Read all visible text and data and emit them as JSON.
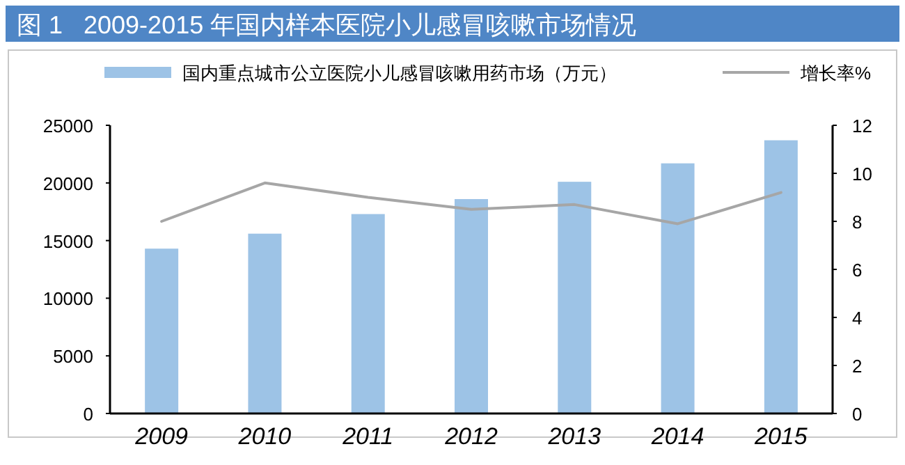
{
  "chart_data": {
    "type": "bar",
    "title": "图 1   2009-2015 年国内样本医院小儿感冒咳嗽市场情况",
    "categories": [
      "2009",
      "2010",
      "2011",
      "2012",
      "2013",
      "2014",
      "2015"
    ],
    "series": [
      {
        "name": "国内重点城市公立医院小儿感冒咳嗽用药市场（万元）",
        "color": "#9dc3e6",
        "values": [
          14300,
          15600,
          17300,
          18600,
          20100,
          21700,
          23700
        ]
      },
      {
        "name": "增长率%",
        "type": "line",
        "axis": "y2",
        "color": "#a6a6a6",
        "values": [
          8.0,
          9.6,
          9.0,
          8.5,
          8.7,
          7.9,
          9.2
        ]
      }
    ],
    "ylim": [
      0,
      25000
    ],
    "yticks": [
      0,
      5000,
      10000,
      15000,
      20000,
      25000
    ],
    "y2lim": [
      0,
      12
    ],
    "y2ticks": [
      0,
      2,
      4,
      6,
      8,
      10,
      12
    ],
    "legend": "top",
    "grid": false
  }
}
